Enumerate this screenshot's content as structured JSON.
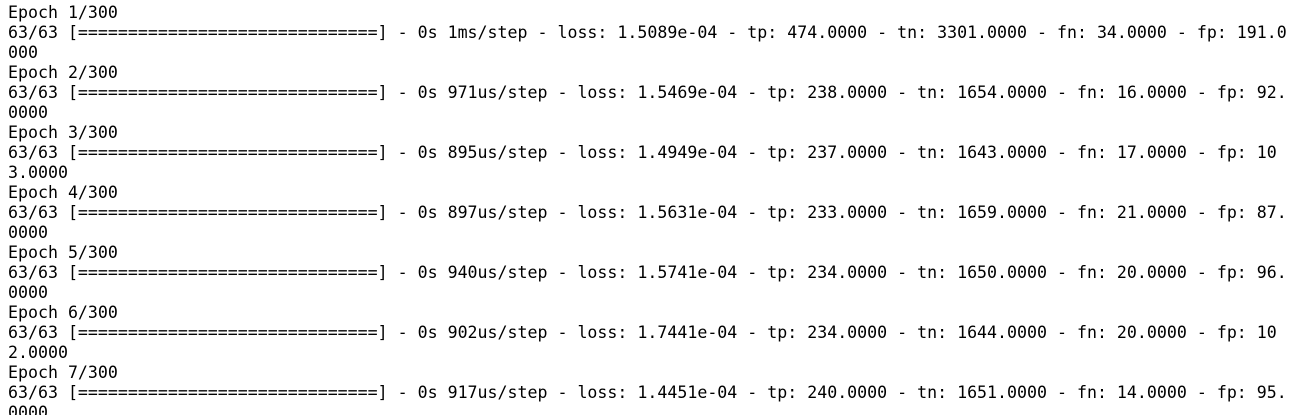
{
  "lines": [
    "Epoch 1/300",
    "63/63 [==============================] - 0s 1ms/step - loss: 1.5089e-04 - tp: 474.0000 - tn: 3301.0000 - fn: 34.0000 - fp: 191.0",
    "000",
    "Epoch 2/300",
    "63/63 [==============================] - 0s 971us/step - loss: 1.5469e-04 - tp: 238.0000 - tn: 1654.0000 - fn: 16.0000 - fp: 92.",
    "0000",
    "Epoch 3/300",
    "63/63 [==============================] - 0s 895us/step - loss: 1.4949e-04 - tp: 237.0000 - tn: 1643.0000 - fn: 17.0000 - fp: 10",
    "3.0000",
    "Epoch 4/300",
    "63/63 [==============================] - 0s 897us/step - loss: 1.5631e-04 - tp: 233.0000 - tn: 1659.0000 - fn: 21.0000 - fp: 87.",
    "0000",
    "Epoch 5/300",
    "63/63 [==============================] - 0s 940us/step - loss: 1.5741e-04 - tp: 234.0000 - tn: 1650.0000 - fn: 20.0000 - fp: 96.",
    "0000",
    "Epoch 6/300",
    "63/63 [==============================] - 0s 902us/step - loss: 1.7441e-04 - tp: 234.0000 - tn: 1644.0000 - fn: 20.0000 - fp: 10",
    "2.0000",
    "Epoch 7/300",
    "63/63 [==============================] - 0s 917us/step - loss: 1.4451e-04 - tp: 240.0000 - tn: 1651.0000 - fn: 14.0000 - fp: 95.",
    "0000"
  ]
}
